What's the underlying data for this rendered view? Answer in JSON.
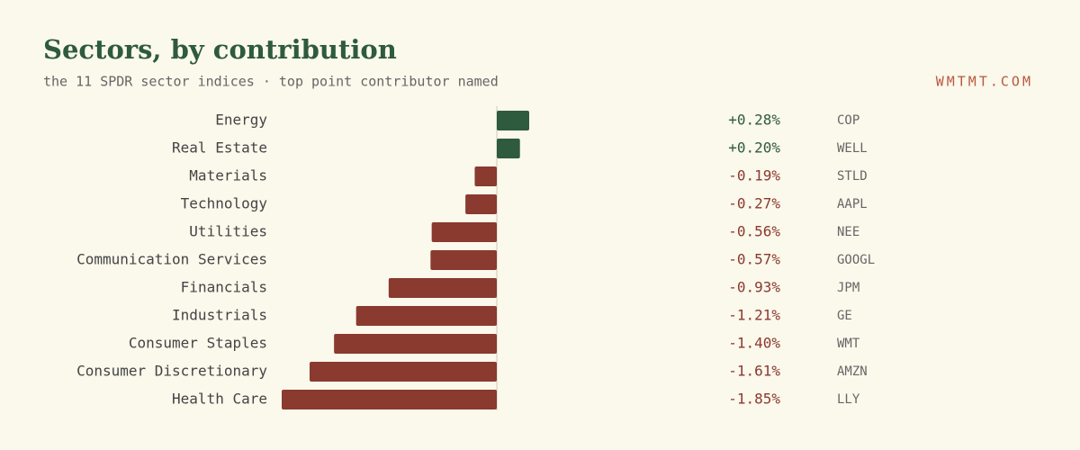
{
  "chart_data": {
    "type": "bar",
    "orientation": "horizontal",
    "title": "Sectors, by contribution",
    "subtitle": "the 11 SPDR sector indices · top point contributor named",
    "source": "WMTMT.COM",
    "categories": [
      "Energy",
      "Real Estate",
      "Materials",
      "Technology",
      "Utilities",
      "Communication Services",
      "Financials",
      "Industrials",
      "Consumer Staples",
      "Consumer Discretionary",
      "Health Care"
    ],
    "values": [
      0.28,
      0.2,
      -0.19,
      -0.27,
      -0.56,
      -0.57,
      -0.93,
      -1.21,
      -1.4,
      -1.61,
      -1.85
    ],
    "value_labels": [
      "+0.28%",
      "+0.20%",
      "-0.19%",
      "-0.27%",
      "-0.56%",
      "-0.57%",
      "-0.93%",
      "-1.21%",
      "-1.40%",
      "-1.61%",
      "-1.85%"
    ],
    "tickers": [
      "COP",
      "WELL",
      "STLD",
      "AAPL",
      "NEE",
      "GOOGL",
      "JPM",
      "GE",
      "WMT",
      "AMZN",
      "LLY"
    ],
    "colors": {
      "positive": "#2e5a3e",
      "negative": "#8a3a2e"
    }
  }
}
